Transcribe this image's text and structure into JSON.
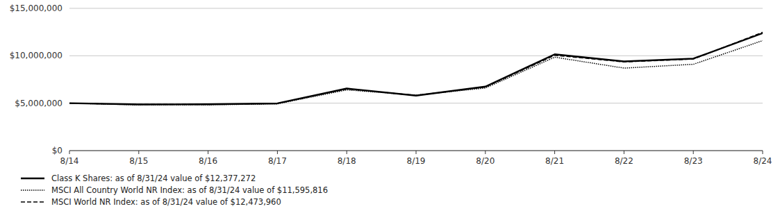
{
  "chart_data": {
    "type": "line",
    "categories": [
      "8/14",
      "8/15",
      "8/16",
      "8/17",
      "8/18",
      "8/19",
      "8/20",
      "8/21",
      "8/22",
      "8/23",
      "8/24"
    ],
    "series": [
      {
        "name": "Class K Shares: as of 8/31/24 value of $12,377,272",
        "color": "#000000",
        "line_style": "solid",
        "values": [
          5000000,
          4870000,
          4880000,
          4980000,
          6550000,
          5800000,
          6750000,
          10150000,
          9400000,
          9700000,
          12377272
        ]
      },
      {
        "name": "MSCI All Country World NR Index: as of 8/31/24 value of $11,595,816",
        "color": "#000000",
        "line_style": "dotted",
        "values": [
          5000000,
          4820000,
          4830000,
          4930000,
          6400000,
          5850000,
          6600000,
          9850000,
          8700000,
          9100000,
          11595816
        ]
      },
      {
        "name": "MSCI World NR Index: as of 8/31/24 value of $12,473,960",
        "color": "#000000",
        "line_style": "dashed",
        "values": [
          5000000,
          4860000,
          4870000,
          4970000,
          6500000,
          5820000,
          6700000,
          10050000,
          9350000,
          9650000,
          12473960
        ]
      }
    ],
    "ylim": [
      0,
      15000000
    ],
    "yticks": [
      {
        "value": 0,
        "label": "$0"
      },
      {
        "value": 5000000,
        "label": "$5,000,000"
      },
      {
        "value": 10000000,
        "label": "$10,000,000"
      },
      {
        "value": 15000000,
        "label": "$15,000,000"
      }
    ],
    "grid": true,
    "legend": "bottom"
  }
}
